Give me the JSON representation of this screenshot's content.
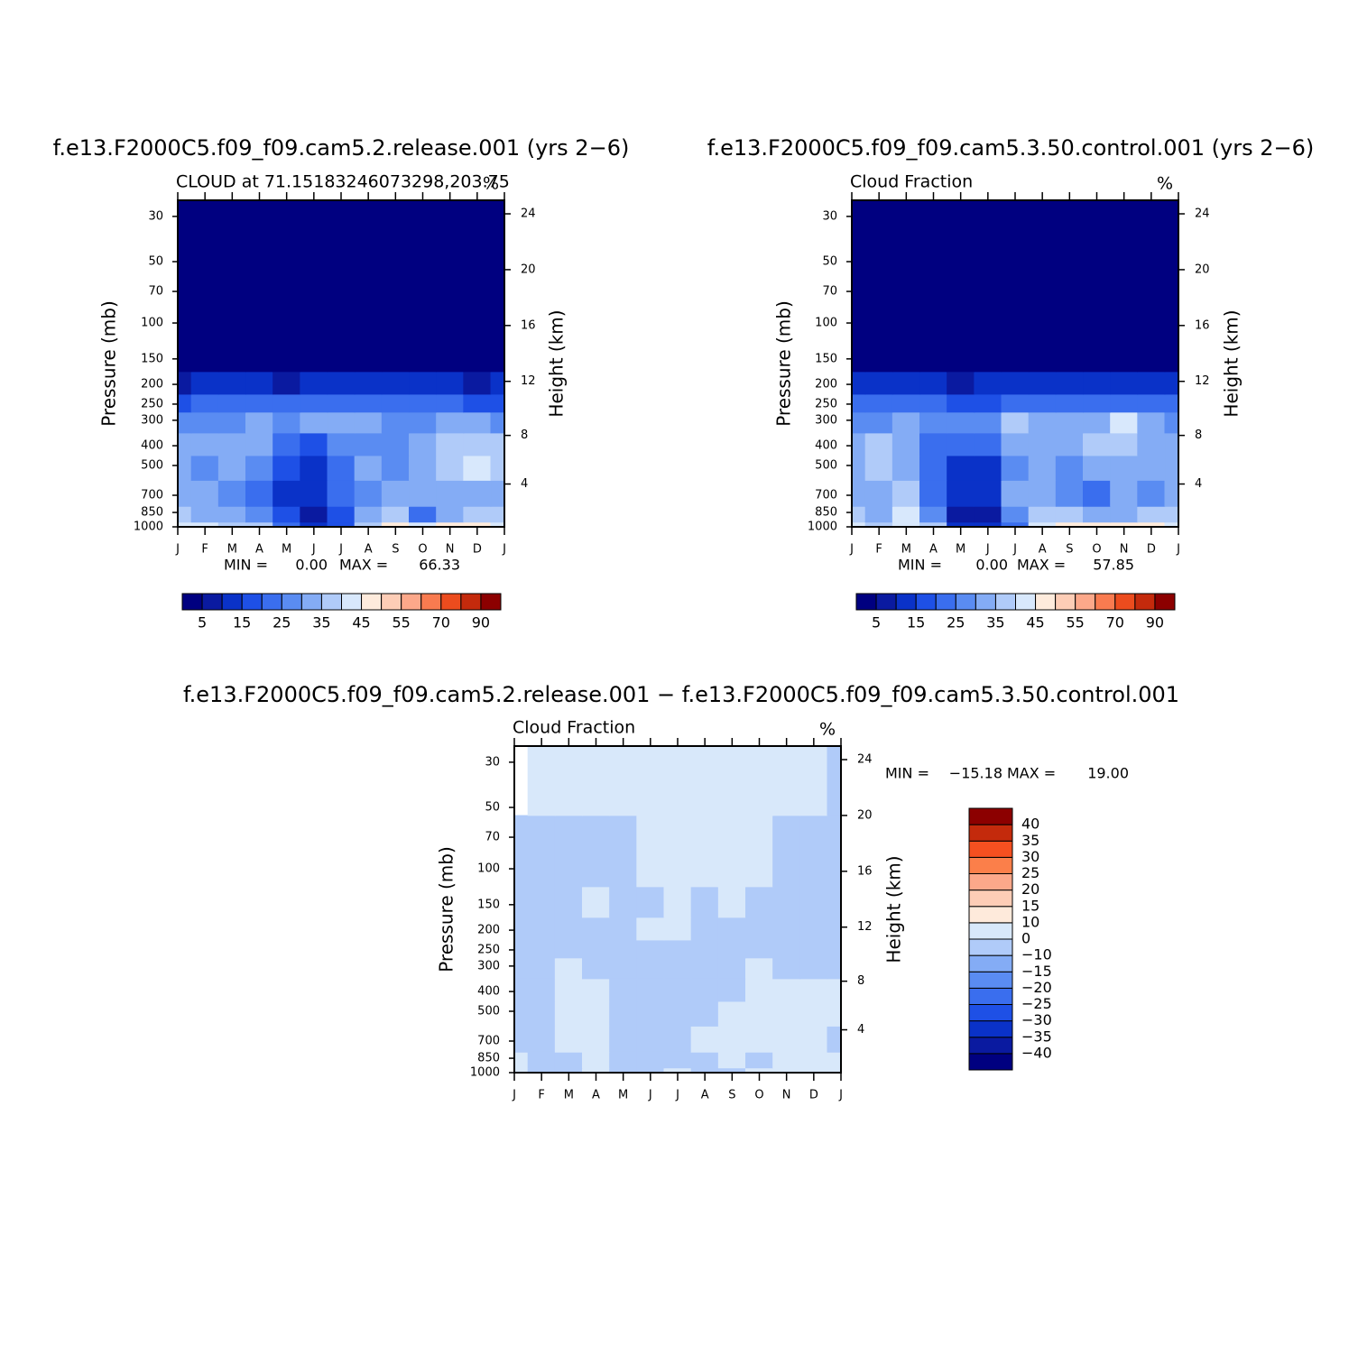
{
  "chart_data": [
    {
      "type": "contour",
      "title": "f.e13.F2000C5.f09_f09.cam5.2.release.001 (yrs 2−6)",
      "subtitle_left": "CLOUD at 71.15183246073298,203.75",
      "subtitle_right": "%",
      "y_label": "Pressure (mb)",
      "y2_label": "Height (km)",
      "categories": [
        "J",
        "F",
        "M",
        "A",
        "M",
        "J",
        "J",
        "A",
        "S",
        "O",
        "N",
        "D",
        "J"
      ],
      "y": [
        1000,
        900,
        700,
        500,
        400,
        300,
        250,
        200,
        150,
        30
      ],
      "z": [
        [
          42,
          40,
          38,
          35,
          20,
          10,
          18,
          38,
          45,
          42,
          45,
          48,
          42
        ],
        [
          35,
          33,
          30,
          25,
          15,
          8,
          15,
          30,
          38,
          22,
          33,
          35,
          35
        ],
        [
          33,
          30,
          25,
          20,
          12,
          10,
          20,
          28,
          30,
          30,
          30,
          32,
          33
        ],
        [
          32,
          25,
          30,
          28,
          15,
          12,
          22,
          30,
          28,
          32,
          38,
          40,
          35
        ],
        [
          32,
          30,
          32,
          30,
          20,
          18,
          25,
          28,
          28,
          30,
          38,
          38,
          35
        ],
        [
          25,
          25,
          28,
          30,
          28,
          30,
          33,
          30,
          28,
          28,
          30,
          30,
          25
        ],
        [
          18,
          20,
          22,
          22,
          20,
          20,
          22,
          22,
          20,
          20,
          20,
          18,
          18
        ],
        [
          8,
          10,
          12,
          10,
          8,
          10,
          12,
          12,
          10,
          10,
          10,
          8,
          10
        ],
        [
          3,
          4,
          3,
          2,
          2,
          2,
          3,
          3,
          3,
          3,
          3,
          3,
          3
        ],
        [
          0.5,
          0.5,
          0.5,
          0.5,
          0.5,
          0.5,
          0.5,
          0.5,
          0.5,
          0.5,
          0.5,
          0.5,
          0.5
        ]
      ],
      "ylim": [
        1000,
        25
      ],
      "y_log": true,
      "yticks": [
        30,
        50,
        70,
        100,
        150,
        200,
        250,
        300,
        400,
        500,
        700,
        850,
        1000
      ],
      "y2ticks": [
        4,
        8,
        12,
        16,
        20,
        24
      ],
      "min_label": "MIN =",
      "min": {
        "value": 0,
        "label": "0.00"
      },
      "max_label": "MAX =",
      "max": 66.33,
      "levels": [
        5,
        10,
        15,
        20,
        25,
        30,
        35,
        40,
        45,
        50,
        55,
        60,
        70,
        80,
        90
      ],
      "colors": [
        "#000080",
        "#0a1aa0",
        "#0a32c8",
        "#1e50e6",
        "#3a6eee",
        "#5a8cf2",
        "#84acf5",
        "#b0cbf9",
        "#d8e8fc",
        "#feebdc",
        "#fdcdb6",
        "#fca88a",
        "#f97b50",
        "#ec4c1e",
        "#c42a0c",
        "#8c0000"
      ],
      "colorbar_ticks": [
        5,
        15,
        25,
        35,
        45,
        55,
        70,
        90
      ]
    },
    {
      "type": "contour",
      "title": "f.e13.F2000C5.f09_f09.cam5.3.50.control.001 (yrs 2−6)",
      "subtitle_left": "Cloud Fraction",
      "subtitle_right": "%",
      "y_label": "Pressure (mb)",
      "y2_label": "Height (km)",
      "categories": [
        "J",
        "F",
        "M",
        "A",
        "M",
        "J",
        "J",
        "A",
        "S",
        "O",
        "N",
        "D",
        "J"
      ],
      "y": [
        1000,
        900,
        700,
        500,
        400,
        300,
        250,
        200,
        150,
        30
      ],
      "z": [
        [
          40,
          38,
          42,
          35,
          12,
          12,
          20,
          42,
          45,
          45,
          48,
          46,
          40
        ],
        [
          35,
          33,
          40,
          25,
          8,
          8,
          28,
          38,
          35,
          30,
          33,
          35,
          35
        ],
        [
          30,
          32,
          35,
          20,
          10,
          10,
          30,
          30,
          25,
          22,
          30,
          28,
          30
        ],
        [
          32,
          38,
          30,
          20,
          12,
          14,
          28,
          30,
          25,
          30,
          32,
          30,
          32
        ],
        [
          30,
          35,
          30,
          22,
          20,
          20,
          30,
          32,
          32,
          35,
          38,
          32,
          30
        ],
        [
          26,
          28,
          30,
          25,
          25,
          28,
          36,
          32,
          30,
          32,
          40,
          30,
          26
        ],
        [
          20,
          20,
          22,
          20,
          18,
          18,
          24,
          22,
          22,
          22,
          24,
          22,
          20
        ],
        [
          10,
          12,
          12,
          10,
          8,
          10,
          12,
          12,
          12,
          10,
          12,
          10,
          10
        ],
        [
          3,
          4,
          3,
          2,
          2,
          2,
          3,
          3,
          3,
          3,
          3,
          3,
          3
        ],
        [
          0.5,
          0.5,
          0.5,
          0.5,
          0.5,
          0.5,
          0.5,
          0.5,
          0.5,
          0.5,
          0.5,
          0.5,
          0.5
        ]
      ],
      "ylim": [
        1000,
        25
      ],
      "y_log": true,
      "yticks": [
        30,
        50,
        70,
        100,
        150,
        200,
        250,
        300,
        400,
        500,
        700,
        850,
        1000
      ],
      "y2ticks": [
        4,
        8,
        12,
        16,
        20,
        24
      ],
      "min_label": "MIN =",
      "min": {
        "value": 0,
        "label": "0.00"
      },
      "max_label": "MAX =",
      "max": 57.85,
      "levels": [
        5,
        10,
        15,
        20,
        25,
        30,
        35,
        40,
        45,
        50,
        55,
        60,
        70,
        80,
        90
      ],
      "colors": [
        "#000080",
        "#0a1aa0",
        "#0a32c8",
        "#1e50e6",
        "#3a6eee",
        "#5a8cf2",
        "#84acf5",
        "#b0cbf9",
        "#d8e8fc",
        "#feebdc",
        "#fdcdb6",
        "#fca88a",
        "#f97b50",
        "#ec4c1e",
        "#c42a0c",
        "#8c0000"
      ],
      "colorbar_ticks": [
        5,
        15,
        25,
        35,
        45,
        55,
        70,
        90
      ]
    },
    {
      "type": "contour",
      "title": "f.e13.F2000C5.f09_f09.cam5.2.release.001 − f.e13.F2000C5.f09_f09.cam5.3.50.control.001",
      "subtitle_left": "Cloud Fraction",
      "subtitle_right": "%",
      "y_label": "Pressure (mb)",
      "y2_label": "Height (km)",
      "categories": [
        "J",
        "F",
        "M",
        "A",
        "M",
        "J",
        "J",
        "A",
        "S",
        "O",
        "N",
        "D",
        "J"
      ],
      "y": [
        1000,
        900,
        700,
        500,
        400,
        300,
        250,
        200,
        150,
        100,
        30
      ],
      "z": [
        [
          1,
          -1,
          -2,
          3,
          -1,
          -1,
          1,
          -1,
          -1,
          1,
          1,
          2,
          1
        ],
        [
          2,
          -1,
          -3,
          2,
          -1,
          -3,
          -2,
          -1,
          2,
          -2,
          3,
          2,
          2
        ],
        [
          -1,
          -1,
          2,
          3,
          -1,
          -1,
          -1,
          2,
          3,
          2,
          2,
          2,
          -1
        ],
        [
          -1,
          -1,
          2,
          3,
          -1,
          -1,
          -1,
          -1,
          2,
          2,
          2,
          2,
          2
        ],
        [
          -1,
          -1,
          2,
          2,
          -1,
          -1,
          -1,
          -1,
          -1,
          2,
          2,
          2,
          2
        ],
        [
          -1,
          -1,
          1,
          -1,
          -1,
          -1,
          -1,
          -1,
          -1,
          1,
          -1,
          -1,
          -1
        ],
        [
          -1,
          -1,
          -1,
          -1,
          -1,
          -1,
          -1,
          -1,
          -1,
          -1,
          -1,
          -1,
          -1
        ],
        [
          -1,
          -1,
          -1,
          -1,
          -1,
          2,
          2,
          -1,
          -1,
          -1,
          -1,
          -1,
          -1
        ],
        [
          -1,
          -1,
          -1,
          2,
          -1,
          -1,
          2,
          -1,
          2,
          -1,
          -1,
          -1,
          -1
        ],
        [
          -1,
          -1,
          -1,
          -1,
          -1,
          2,
          2,
          1,
          2,
          1,
          -1,
          -1,
          -1
        ],
        [
          null,
          1,
          1,
          1,
          1,
          1,
          1,
          1,
          1,
          1,
          1,
          1,
          -1
        ]
      ],
      "ylim": [
        1000,
        25
      ],
      "y_log": true,
      "yticks": [
        30,
        50,
        70,
        100,
        150,
        200,
        250,
        300,
        400,
        500,
        700,
        850,
        1000
      ],
      "y2ticks": [
        4,
        8,
        12,
        16,
        20,
        24
      ],
      "min_label": "MIN =",
      "min": {
        "value": -15.18,
        "label": "−15.18"
      },
      "max_label": "MAX =",
      "max": {
        "value": 19,
        "label": "19.00"
      },
      "levels": [
        -40,
        -35,
        -30,
        -25,
        -20,
        -15,
        -10,
        0,
        10,
        15,
        20,
        25,
        30,
        35,
        40
      ],
      "colors": [
        "#000080",
        "#0a1aa0",
        "#0a32c8",
        "#1e50e6",
        "#3a6eee",
        "#5a8cf2",
        "#84acf5",
        "#b0cbf9",
        "#d8e8fa",
        "#feeadb",
        "#fdcdb6",
        "#fca88a",
        "#fb7f4a",
        "#f55020",
        "#c42a0c",
        "#8c0000"
      ],
      "colorbar_ticks": [
        {
          "value": -40,
          "label": "−40"
        },
        {
          "value": -35,
          "label": "−35"
        },
        {
          "value": -30,
          "label": "−30"
        },
        {
          "value": -25,
          "label": "−25"
        },
        {
          "value": -20,
          "label": "−20"
        },
        {
          "value": -15,
          "label": "−15"
        },
        {
          "value": -10,
          "label": "−10"
        },
        0,
        10,
        15,
        20,
        25,
        30,
        35,
        40
      ]
    }
  ]
}
